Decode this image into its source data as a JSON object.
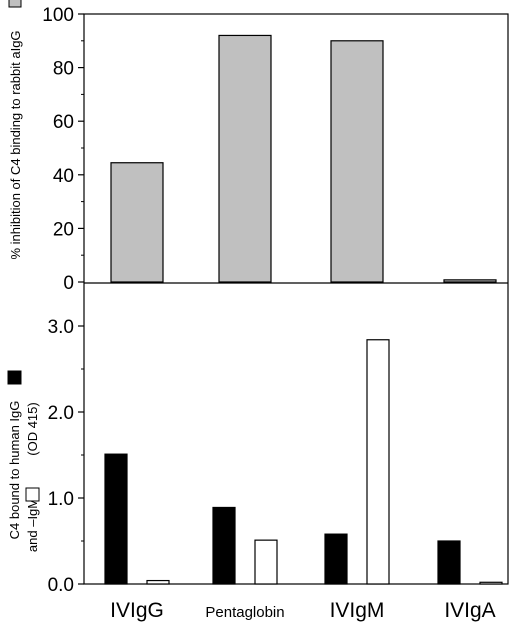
{
  "chart_data": [
    {
      "type": "bar",
      "categories": [
        "IVIgG",
        "Pentaglobin",
        "IVIgM",
        "IVIgA"
      ],
      "series": [
        {
          "values": [
            44.5,
            92,
            90,
            0.8
          ]
        }
      ],
      "ylabel": "% inhibition of C4 binding to rabbit aIgG",
      "ylim": [
        0,
        100
      ],
      "yticks": [
        0,
        20,
        40,
        60,
        80,
        100
      ],
      "ytick_labels": [
        "0",
        "20",
        "40",
        "60",
        "80",
        "100"
      ],
      "grid": false,
      "legend_swatches": [
        "gray"
      ],
      "colors": {
        "gray": "#c0c0c0"
      }
    },
    {
      "type": "bar",
      "categories": [
        "IVIgG",
        "Pentaglobin",
        "IVIgM",
        "IVIgA"
      ],
      "series": [
        {
          "values": [
            1.51,
            0.89,
            0.58,
            0.5
          ],
          "color": "#000000"
        },
        {
          "values": [
            0.04,
            0.51,
            2.84,
            0.02
          ],
          "color": "#ffffff"
        }
      ],
      "ylabel_line1": "C4 bound to human IgG",
      "ylabel_line2": "and –IgM",
      "ylabel_unit": "(OD 415)",
      "ylim": [
        0,
        3.5
      ],
      "yticks": [
        0,
        1,
        2,
        3
      ],
      "ytick_labels": [
        "0.0",
        "1.0",
        "2.0",
        "3.0"
      ],
      "minor_ticks": [
        0.5,
        1.5,
        2.5
      ],
      "grid": false,
      "legend_swatches": [
        "black",
        "white"
      ]
    }
  ]
}
